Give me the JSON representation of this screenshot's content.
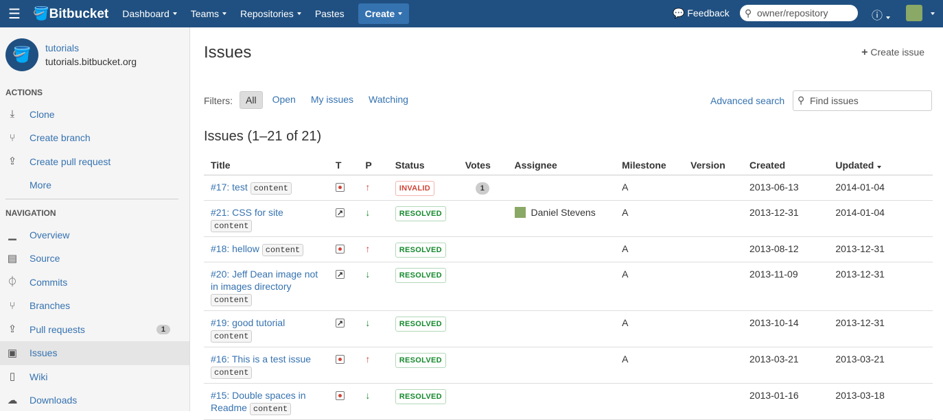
{
  "header": {
    "logo": "Bitbucket",
    "nav": [
      {
        "label": "Dashboard",
        "caret": true
      },
      {
        "label": "Teams",
        "caret": true
      },
      {
        "label": "Repositories",
        "caret": true
      },
      {
        "label": "Pastes",
        "caret": false
      }
    ],
    "create": "Create",
    "feedback": "Feedback",
    "search_placeholder": "owner/repository",
    "brand_color": "#205081"
  },
  "repo": {
    "name": "tutorials",
    "url": "tutorials.bitbucket.org"
  },
  "sidebar": {
    "actions_heading": "ACTIONS",
    "actions": [
      {
        "label": "Clone",
        "icon": "download-icon"
      },
      {
        "label": "Create branch",
        "icon": "branch-add-icon"
      },
      {
        "label": "Create pull request",
        "icon": "pull-request-add-icon"
      },
      {
        "label": "More",
        "icon": ""
      }
    ],
    "navigation_heading": "NAVIGATION",
    "navigation": [
      {
        "label": "Overview",
        "icon": "chart-icon"
      },
      {
        "label": "Source",
        "icon": "file-icon"
      },
      {
        "label": "Commits",
        "icon": "commit-icon"
      },
      {
        "label": "Branches",
        "icon": "branch-icon"
      },
      {
        "label": "Pull requests",
        "icon": "pull-request-icon",
        "badge": "1"
      },
      {
        "label": "Issues",
        "icon": "issues-icon",
        "selected": true
      },
      {
        "label": "Wiki",
        "icon": "wiki-icon"
      },
      {
        "label": "Downloads",
        "icon": "cloud-download-icon"
      }
    ]
  },
  "main": {
    "title": "Issues",
    "create_issue": "Create issue",
    "filters_label": "Filters:",
    "filters": [
      "All",
      "Open",
      "My issues",
      "Watching"
    ],
    "active_filter": "All",
    "advanced_search": "Advanced search",
    "find_placeholder": "Find issues",
    "count_heading": "Issues (1–21 of 21)",
    "columns": [
      "Title",
      "T",
      "P",
      "Status",
      "Votes",
      "Assignee",
      "Milestone",
      "Version",
      "Created",
      "Updated"
    ],
    "issues": [
      {
        "title": "#17: test",
        "component": "content",
        "type": "bug",
        "priority": "up",
        "status": "INVALID",
        "votes": "1",
        "assignee": "",
        "milestone": "A",
        "version": "",
        "created": "2013-06-13",
        "updated": "2014-01-04"
      },
      {
        "title": "#21: CSS for site",
        "component": "content",
        "type": "enhancement",
        "priority": "down",
        "status": "RESOLVED",
        "votes": "",
        "assignee": "Daniel Stevens",
        "milestone": "A",
        "version": "",
        "created": "2013-12-31",
        "updated": "2014-01-04"
      },
      {
        "title": "#18: hellow",
        "component": "content",
        "type": "bug",
        "priority": "up",
        "status": "RESOLVED",
        "votes": "",
        "assignee": "",
        "milestone": "A",
        "version": "",
        "created": "2013-08-12",
        "updated": "2013-12-31"
      },
      {
        "title": "#20: Jeff Dean image not in images directory",
        "component": "content",
        "type": "enhancement",
        "priority": "down",
        "status": "RESOLVED",
        "votes": "",
        "assignee": "",
        "milestone": "A",
        "version": "",
        "created": "2013-11-09",
        "updated": "2013-12-31"
      },
      {
        "title": "#19: good tutorial",
        "component": "content",
        "type": "enhancement",
        "priority": "down",
        "status": "RESOLVED",
        "votes": "",
        "assignee": "",
        "milestone": "A",
        "version": "",
        "created": "2013-10-14",
        "updated": "2013-12-31"
      },
      {
        "title": "#16: This is a test issue",
        "component": "content",
        "type": "bug",
        "priority": "up",
        "status": "RESOLVED",
        "votes": "",
        "assignee": "",
        "milestone": "A",
        "version": "",
        "created": "2013-03-21",
        "updated": "2013-03-21"
      },
      {
        "title": "#15: Double spaces in Readme",
        "component": "content",
        "type": "bug",
        "priority": "down",
        "status": "RESOLVED",
        "votes": "",
        "assignee": "",
        "milestone": "",
        "version": "",
        "created": "2013-01-16",
        "updated": "2013-03-18"
      }
    ]
  }
}
